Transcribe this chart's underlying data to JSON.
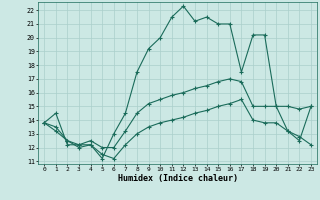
{
  "xlabel": "Humidex (Indice chaleur)",
  "bg_color": "#cce8e4",
  "grid_color": "#aacfcb",
  "line_color": "#1a6b5a",
  "x_ticks": [
    0,
    1,
    2,
    3,
    4,
    5,
    6,
    7,
    8,
    9,
    10,
    11,
    12,
    13,
    14,
    15,
    16,
    17,
    18,
    19,
    20,
    21,
    22,
    23
  ],
  "y_ticks": [
    11,
    12,
    13,
    14,
    15,
    16,
    17,
    18,
    19,
    20,
    21,
    22
  ],
  "ylim": [
    10.8,
    22.6
  ],
  "xlim": [
    -0.5,
    23.5
  ],
  "line1": [
    13.8,
    14.5,
    12.2,
    12.2,
    12.2,
    11.2,
    13.0,
    14.5,
    17.5,
    19.2,
    20.0,
    21.5,
    22.3,
    21.2,
    21.5,
    21.0,
    21.0,
    17.5,
    20.2,
    20.2,
    15.0,
    13.2,
    12.5,
    15.0
  ],
  "line2": [
    13.8,
    13.5,
    12.5,
    12.2,
    12.5,
    12.0,
    12.0,
    13.2,
    14.5,
    15.2,
    15.5,
    15.8,
    16.0,
    16.3,
    16.5,
    16.8,
    17.0,
    16.8,
    15.0,
    15.0,
    15.0,
    15.0,
    14.8,
    15.0
  ],
  "line3": [
    13.8,
    13.2,
    12.5,
    12.0,
    12.2,
    11.5,
    11.2,
    12.2,
    13.0,
    13.5,
    13.8,
    14.0,
    14.2,
    14.5,
    14.7,
    15.0,
    15.2,
    15.5,
    14.0,
    13.8,
    13.8,
    13.2,
    12.8,
    12.2
  ]
}
